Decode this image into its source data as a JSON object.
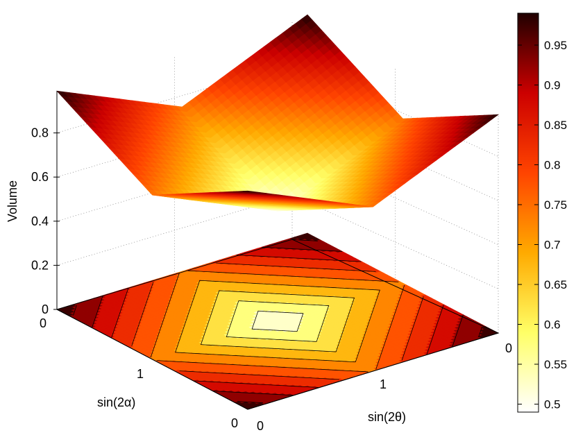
{
  "chart_data": {
    "type": "surface",
    "title": "",
    "zlabel": "Volume",
    "xlabel": "sin(2α)",
    "ylabel": "sin(2θ)",
    "x_range": [
      0,
      1.5
    ],
    "y_range": [
      0,
      1.5
    ],
    "z_range": [
      0,
      0.99
    ],
    "z_ticks": [
      "0",
      "0.2",
      "0.4",
      "0.6",
      "0.8"
    ],
    "x_ticks": [
      "0",
      "1"
    ],
    "y_ticks": [
      "0",
      "1"
    ],
    "far_tick_label": "0",
    "surface_corners": {
      "corner_values": 0.99,
      "edge_midpoints": 0.75,
      "center": 0.5
    },
    "contour_projection": "contour lines at z = 0",
    "grid": true,
    "colormap": "hot (reversed)",
    "colorbar": {
      "ticks": [
        "0.5",
        "0.55",
        "0.6",
        "0.65",
        "0.7",
        "0.75",
        "0.8",
        "0.85",
        "0.9",
        "0.95"
      ],
      "range": [
        0.49,
        0.99
      ],
      "placement": "right"
    }
  }
}
